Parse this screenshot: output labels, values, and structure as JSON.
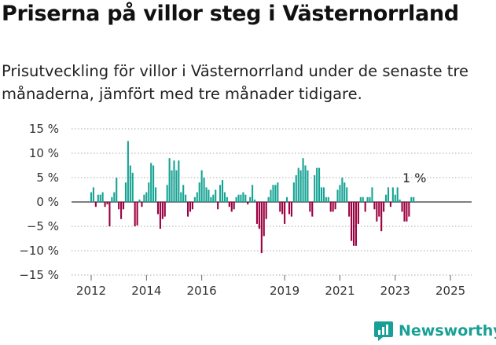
{
  "title": "Priserna på villor steg i Västernorrland",
  "subtitle": "Prisutveckling för villor i Västernorrland under de senaste tre månaderna, jämfört med tre månader tidigare.",
  "brand": "Newsworthy",
  "colors": {
    "positive": "#16a394",
    "negative": "#9c0040",
    "brand": "#19a096"
  },
  "chart_data": {
    "type": "bar",
    "unit": "%",
    "ylim": [
      -15,
      15
    ],
    "yticks": [
      15,
      10,
      5,
      0,
      -5,
      -10,
      -15
    ],
    "ytick_labels": [
      "15 %",
      "10 %",
      "5 %",
      "0 %",
      "−5 %",
      "−10 %",
      "−15 %"
    ],
    "xtick_labels": [
      "2012",
      "2014",
      "2016",
      "2019",
      "2021",
      "2023",
      "2025"
    ],
    "xtick_months": [
      0,
      24,
      48,
      84,
      108,
      132,
      156
    ],
    "annotation": "1 %",
    "grid": "horizontal dotted",
    "start": "2012-01",
    "values": [
      2,
      3,
      -1,
      1.5,
      1.5,
      2,
      -1,
      -0.5,
      -5,
      1,
      2,
      5,
      -1.5,
      -3.5,
      -1.5,
      4,
      12.5,
      7.5,
      6,
      -5,
      -4.8,
      0.5,
      -1,
      1.5,
      2,
      4,
      8,
      7.5,
      3,
      -2.5,
      -5.5,
      -3.5,
      -3,
      3.5,
      9,
      6.5,
      8.5,
      6.5,
      8.5,
      2,
      3.5,
      1.5,
      -3,
      -2,
      -1.5,
      1,
      2,
      4,
      6.5,
      5,
      3,
      2.5,
      1,
      1.5,
      2.5,
      -1.5,
      3.5,
      4.5,
      2,
      1,
      -1,
      -2,
      -1.5,
      1,
      1.5,
      1.5,
      2,
      1.5,
      -0.5,
      1,
      3.5,
      0.5,
      -4.5,
      -5.5,
      -10.5,
      -7,
      -3.5,
      1,
      2.5,
      3.5,
      3.5,
      4,
      -2,
      -2.5,
      -4.5,
      1,
      -2.5,
      -3,
      4,
      5.5,
      7,
      6.5,
      9,
      7.5,
      6.5,
      -2,
      -3,
      5.5,
      7,
      7,
      3,
      3,
      1,
      1,
      -2,
      -2,
      -1.5,
      2.5,
      3.5,
      5,
      4,
      3,
      -3,
      -8,
      -9,
      -9,
      -4.5,
      1,
      1,
      -2,
      1,
      1,
      3,
      -1.5,
      -4,
      -3,
      -6,
      -2,
      1.5,
      3,
      -1,
      3,
      1.5,
      3,
      0.5,
      -2,
      -4,
      -4,
      -3,
      1,
      1
    ]
  }
}
